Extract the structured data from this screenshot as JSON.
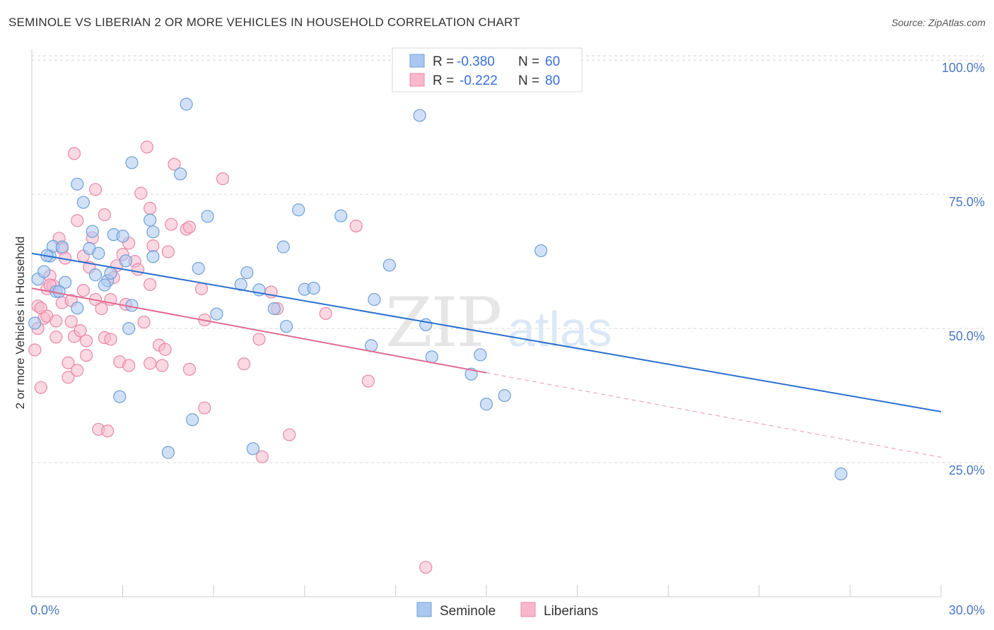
{
  "title": "SEMINOLE VS LIBERIAN 2 OR MORE VEHICLES IN HOUSEHOLD CORRELATION CHART",
  "source": "Source: ZipAtlas.com",
  "watermark": {
    "zip": "ZIP",
    "atlas": "atlas"
  },
  "colors": {
    "seminole_fill": "#a9c8f0",
    "seminole_stroke": "#6f9fd8",
    "seminole_line": "#2b6fd1",
    "liberian_fill": "#f7b8cb",
    "liberian_stroke": "#e889a8",
    "liberian_line": "#e26a93",
    "grid": "#d9d9d9",
    "tick_text": "#4a78c2"
  },
  "stats_legend": [
    {
      "series": "Seminole",
      "r_label": "R =",
      "r_value": "-0.380",
      "n_label": "N =",
      "n_value": "60"
    },
    {
      "series": "Liberians",
      "r_label": "R =",
      "r_value": "-0.222",
      "n_label": "N =",
      "n_value": "80"
    }
  ],
  "chart_data": {
    "type": "scatter",
    "title": "SEMINOLE VS LIBERIAN 2 OR MORE VEHICLES IN HOUSEHOLD CORRELATION CHART",
    "xlabel": "",
    "ylabel": "2 or more Vehicles in Household",
    "xlim": [
      0,
      30
    ],
    "ylim": [
      0,
      102
    ],
    "x_tick_labels": [
      {
        "value": 0,
        "label": "0.0%"
      },
      {
        "value": 30,
        "label": "30.0%"
      }
    ],
    "x_minor_ticks": [
      0,
      3,
      6,
      9,
      12,
      15,
      18,
      21,
      24,
      27,
      30
    ],
    "y_ticks": [
      {
        "value": 25,
        "label": "25.0%"
      },
      {
        "value": 50,
        "label": "50.0%"
      },
      {
        "value": 75,
        "label": "75.0%"
      },
      {
        "value": 100,
        "label": "100.0%"
      }
    ],
    "legend_position": "bottom-center",
    "series": [
      {
        "name": "Seminole",
        "color": "#a9c8f0",
        "trend": {
          "x0": 0,
          "y0": 64.0,
          "x1": 30,
          "y1": 34.5,
          "dashed_from": null
        },
        "points": [
          [
            0.2,
            59.2
          ],
          [
            0.4,
            60.6
          ],
          [
            0.6,
            63.5
          ],
          [
            0.7,
            65.3
          ],
          [
            0.8,
            56.9
          ],
          [
            1.1,
            58.6
          ],
          [
            0.5,
            63.6
          ],
          [
            1.0,
            65.2
          ],
          [
            1.5,
            76.9
          ],
          [
            1.7,
            73.5
          ],
          [
            1.9,
            64.9
          ],
          [
            2.2,
            64.0
          ],
          [
            2.0,
            68.1
          ],
          [
            1.5,
            53.8
          ],
          [
            2.1,
            60.0
          ],
          [
            2.5,
            58.9
          ],
          [
            2.6,
            60.3
          ],
          [
            2.7,
            67.5
          ],
          [
            3.0,
            67.2
          ],
          [
            3.1,
            62.6
          ],
          [
            3.2,
            50.0
          ],
          [
            3.3,
            54.3
          ],
          [
            3.3,
            80.9
          ],
          [
            2.9,
            37.3
          ],
          [
            3.9,
            70.2
          ],
          [
            4.0,
            68.0
          ],
          [
            4.0,
            63.4
          ],
          [
            4.5,
            26.9
          ],
          [
            4.9,
            78.8
          ],
          [
            5.1,
            91.8
          ],
          [
            5.5,
            61.2
          ],
          [
            5.8,
            70.9
          ],
          [
            5.3,
            33.0
          ],
          [
            6.1,
            52.7
          ],
          [
            6.9,
            58.2
          ],
          [
            7.1,
            60.4
          ],
          [
            7.5,
            57.2
          ],
          [
            8.0,
            53.7
          ],
          [
            8.3,
            65.2
          ],
          [
            8.4,
            50.4
          ],
          [
            8.8,
            72.1
          ],
          [
            9.0,
            57.3
          ],
          [
            9.3,
            57.5
          ],
          [
            10.2,
            71.0
          ],
          [
            11.2,
            46.8
          ],
          [
            11.3,
            55.4
          ],
          [
            11.8,
            61.8
          ],
          [
            12.8,
            89.7
          ],
          [
            13.0,
            50.7
          ],
          [
            13.2,
            44.7
          ],
          [
            14.5,
            41.5
          ],
          [
            14.8,
            45.1
          ],
          [
            15.0,
            35.9
          ],
          [
            15.6,
            37.5
          ],
          [
            16.8,
            64.5
          ],
          [
            26.7,
            22.9
          ],
          [
            2.4,
            58.1
          ],
          [
            0.9,
            56.9
          ],
          [
            7.3,
            27.6
          ],
          [
            0.1,
            51.0
          ]
        ]
      },
      {
        "name": "Liberians",
        "color": "#f7b8cb",
        "trend": {
          "x0": 0,
          "y0": 57.5,
          "x1": 30,
          "y1": 26.0,
          "dashed_from": 15.0
        },
        "points": [
          [
            0.1,
            46.0
          ],
          [
            0.2,
            54.2
          ],
          [
            0.3,
            53.8
          ],
          [
            0.3,
            39.0
          ],
          [
            0.4,
            51.9
          ],
          [
            0.5,
            57.4
          ],
          [
            0.5,
            52.3
          ],
          [
            0.6,
            59.8
          ],
          [
            0.7,
            58.0
          ],
          [
            0.8,
            51.4
          ],
          [
            0.8,
            48.4
          ],
          [
            0.9,
            66.8
          ],
          [
            1.0,
            54.8
          ],
          [
            1.0,
            64.9
          ],
          [
            1.1,
            63.1
          ],
          [
            1.2,
            43.6
          ],
          [
            1.2,
            40.9
          ],
          [
            1.3,
            55.2
          ],
          [
            1.4,
            48.5
          ],
          [
            1.4,
            82.6
          ],
          [
            1.5,
            70.1
          ],
          [
            1.5,
            42.2
          ],
          [
            1.6,
            49.6
          ],
          [
            1.7,
            57.1
          ],
          [
            1.8,
            47.7
          ],
          [
            1.8,
            45.0
          ],
          [
            1.9,
            61.4
          ],
          [
            2.0,
            66.9
          ],
          [
            2.1,
            55.4
          ],
          [
            2.1,
            75.9
          ],
          [
            2.2,
            31.2
          ],
          [
            2.3,
            53.7
          ],
          [
            2.4,
            48.3
          ],
          [
            2.4,
            71.2
          ],
          [
            2.5,
            30.9
          ],
          [
            2.6,
            55.4
          ],
          [
            2.7,
            59.5
          ],
          [
            2.8,
            61.7
          ],
          [
            2.9,
            43.8
          ],
          [
            3.0,
            63.8
          ],
          [
            3.1,
            54.5
          ],
          [
            3.2,
            65.9
          ],
          [
            3.2,
            43.1
          ],
          [
            3.4,
            62.5
          ],
          [
            3.6,
            75.2
          ],
          [
            3.7,
            51.2
          ],
          [
            3.8,
            83.8
          ],
          [
            3.9,
            72.4
          ],
          [
            3.9,
            58.2
          ],
          [
            3.9,
            43.5
          ],
          [
            4.0,
            65.4
          ],
          [
            4.2,
            46.9
          ],
          [
            4.3,
            43.1
          ],
          [
            4.4,
            46.1
          ],
          [
            4.5,
            64.3
          ],
          [
            4.6,
            69.4
          ],
          [
            4.7,
            80.6
          ],
          [
            5.1,
            68.5
          ],
          [
            5.2,
            68.9
          ],
          [
            5.2,
            42.4
          ],
          [
            5.6,
            57.4
          ],
          [
            5.7,
            35.2
          ],
          [
            5.7,
            51.6
          ],
          [
            6.3,
            77.9
          ],
          [
            7.0,
            43.4
          ],
          [
            7.5,
            48.0
          ],
          [
            7.6,
            26.1
          ],
          [
            7.9,
            56.8
          ],
          [
            8.1,
            53.7
          ],
          [
            8.5,
            30.2
          ],
          [
            9.7,
            52.8
          ],
          [
            10.7,
            69.1
          ],
          [
            11.1,
            40.2
          ],
          [
            13.0,
            5.5
          ],
          [
            0.6,
            58.1
          ],
          [
            1.3,
            51.3
          ],
          [
            0.2,
            50.0
          ],
          [
            3.5,
            61.0
          ],
          [
            2.6,
            48.0
          ],
          [
            1.7,
            63.5
          ]
        ]
      }
    ]
  },
  "bottom_legend": [
    {
      "label": "Seminole"
    },
    {
      "label": "Liberians"
    }
  ]
}
